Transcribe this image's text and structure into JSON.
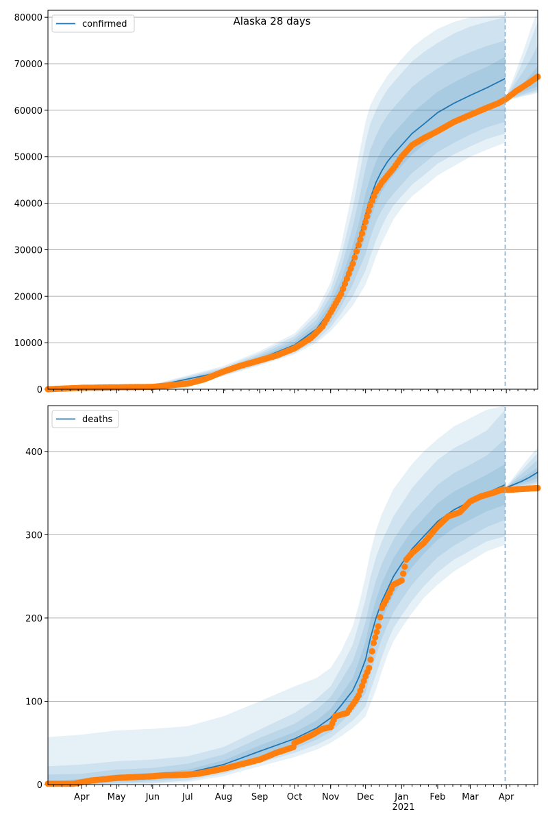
{
  "chart_data": [
    {
      "type": "line",
      "title": "Alaska 28 days",
      "legend": "confirmed",
      "legend_position": "top-left",
      "grid": "y",
      "ylim": [
        0,
        81500
      ],
      "yticks": [
        0,
        10000,
        20000,
        30000,
        40000,
        50000,
        60000,
        70000,
        80000
      ],
      "xlim": [
        "2020-03-03",
        "2021-04-28"
      ],
      "forecast_start": "2021-03-31",
      "fan_levels": [
        "50%",
        "80%",
        "95%",
        "99%"
      ],
      "model_x": [
        "2020-03-03",
        "2020-06-01",
        "2020-08-01",
        "2020-09-01",
        "2020-10-01",
        "2020-10-20",
        "2020-11-01",
        "2020-11-10",
        "2020-11-20",
        "2020-11-25",
        "2020-12-01",
        "2020-12-05",
        "2020-12-10",
        "2020-12-15",
        "2020-12-20",
        "2020-12-25",
        "2021-01-01",
        "2021-01-10",
        "2021-01-20",
        "2021-02-01",
        "2021-02-15",
        "2021-03-01",
        "2021-03-15",
        "2021-03-31"
      ],
      "model_y": [
        0,
        600,
        3800,
        6500,
        9500,
        13000,
        17000,
        21500,
        28000,
        32000,
        37500,
        41000,
        44500,
        47000,
        49000,
        50500,
        52500,
        55000,
        57000,
        59500,
        61500,
        63200,
        64800,
        66800
      ],
      "forecast_x": [
        "2021-03-31",
        "2021-04-05",
        "2021-04-10",
        "2021-04-15",
        "2021-04-20",
        "2021-04-25",
        "2021-04-28"
      ],
      "forecast_y": [
        62500,
        63500,
        64300,
        65200,
        66000,
        66800,
        67300
      ],
      "observed_x": [
        "2020-03-03",
        "2020-04-01",
        "2020-05-01",
        "2020-06-01",
        "2020-07-01",
        "2020-07-15",
        "2020-08-01",
        "2020-08-15",
        "2020-09-01",
        "2020-09-15",
        "2020-10-01",
        "2020-10-15",
        "2020-10-25",
        "2020-11-01",
        "2020-11-10",
        "2020-11-20",
        "2020-11-25",
        "2020-12-01",
        "2020-12-05",
        "2020-12-10",
        "2020-12-15",
        "2020-12-20",
        "2020-12-25",
        "2021-01-01",
        "2021-01-10",
        "2021-01-20",
        "2021-02-01",
        "2021-02-15",
        "2021-03-01",
        "2021-03-15",
        "2021-03-25",
        "2021-03-31",
        "2021-04-10",
        "2021-04-20",
        "2021-04-28"
      ],
      "observed_y": [
        0,
        300,
        400,
        500,
        1200,
        2100,
        3800,
        5000,
        6200,
        7200,
        8800,
        11000,
        13500,
        16500,
        20500,
        27000,
        31000,
        36000,
        39500,
        42500,
        44500,
        46000,
        47500,
        50000,
        52500,
        54000,
        55500,
        57500,
        59000,
        60500,
        61500,
        62300,
        64200,
        65800,
        67200
      ],
      "band_x": [
        "2020-06-01",
        "2020-08-01",
        "2020-09-01",
        "2020-10-01",
        "2020-10-20",
        "2020-11-01",
        "2020-11-10",
        "2020-11-20",
        "2020-11-25",
        "2020-12-01",
        "2020-12-05",
        "2020-12-10",
        "2020-12-15",
        "2020-12-20",
        "2020-12-25",
        "2021-01-01",
        "2021-01-10",
        "2021-01-20",
        "2021-02-01",
        "2021-02-15",
        "2021-03-01",
        "2021-03-15",
        "2021-03-31"
      ],
      "bands": [
        {
          "lower": [
            500,
            3500,
            6000,
            8800,
            12000,
            15500,
            19500,
            25000,
            28500,
            33000,
            36500,
            40000,
            42500,
            44500,
            46000,
            48000,
            50500,
            52500,
            55000,
            57000,
            58800,
            60300,
            62000
          ],
          "upper": [
            700,
            4100,
            7000,
            10200,
            14000,
            18500,
            23500,
            31000,
            35500,
            42000,
            45500,
            49000,
            51500,
            53500,
            55000,
            57000,
            59500,
            61500,
            64000,
            66000,
            67800,
            69300,
            71500
          ]
        },
        {
          "lower": [
            400,
            3200,
            5600,
            8200,
            11200,
            14300,
            17800,
            22500,
            25500,
            29000,
            32500,
            36000,
            38500,
            40500,
            42000,
            44000,
            46500,
            48500,
            51000,
            53000,
            54800,
            56300,
            57500
          ],
          "upper": [
            800,
            4400,
            7400,
            10800,
            15000,
            20000,
            26000,
            35000,
            40500,
            47500,
            51500,
            54500,
            57000,
            59000,
            60500,
            62500,
            65000,
            67000,
            69000,
            71000,
            72500,
            73800,
            75000
          ]
        },
        {
          "lower": [
            300,
            3000,
            5300,
            7800,
            10500,
            13300,
            16300,
            20000,
            22500,
            25500,
            28500,
            32000,
            35000,
            37500,
            39500,
            41500,
            44000,
            46000,
            48500,
            50500,
            52200,
            53800,
            55000
          ],
          "upper": [
            900,
            4700,
            7800,
            11400,
            16000,
            21500,
            28500,
            39000,
            45500,
            53000,
            57000,
            60000,
            62500,
            64500,
            66000,
            68000,
            70500,
            72500,
            74500,
            76500,
            78000,
            79000,
            80000
          ]
        },
        {
          "lower": [
            250,
            2800,
            5100,
            7500,
            10000,
            12500,
            15000,
            18000,
            20000,
            22500,
            25000,
            28500,
            31500,
            34000,
            36500,
            39000,
            41500,
            43500,
            46000,
            48000,
            50000,
            51500,
            53000
          ],
          "upper": [
            1000,
            5000,
            8200,
            12000,
            17000,
            23000,
            31000,
            43000,
            50000,
            57500,
            61000,
            63500,
            65500,
            67500,
            69000,
            71000,
            73500,
            75500,
            77500,
            79000,
            80000,
            80200,
            80500
          ]
        }
      ],
      "forecast_band_x": [
        "2021-03-31",
        "2021-04-08",
        "2021-04-16",
        "2021-04-22",
        "2021-04-28"
      ],
      "forecast_bands": [
        {
          "lower": [
            62500,
            63200,
            64000,
            64600,
            65100
          ],
          "upper": [
            62500,
            64200,
            66000,
            67600,
            69500
          ]
        },
        {
          "lower": [
            62500,
            62800,
            63500,
            64000,
            64400
          ],
          "upper": [
            62500,
            65500,
            68500,
            71000,
            74000
          ]
        },
        {
          "lower": [
            62500,
            62600,
            63200,
            63600,
            64000
          ],
          "upper": [
            62500,
            66500,
            71000,
            75000,
            79000
          ]
        },
        {
          "lower": [
            62500,
            62500,
            63000,
            63300,
            63700
          ],
          "upper": [
            62500,
            67500,
            73000,
            77500,
            81500
          ]
        }
      ]
    },
    {
      "type": "line",
      "legend": "deaths",
      "legend_position": "top-left",
      "grid": "y",
      "ylim": [
        0,
        455
      ],
      "yticks": [
        0,
        100,
        200,
        300,
        400
      ],
      "xlim": [
        "2020-03-03",
        "2021-04-28"
      ],
      "forecast_start": "2021-03-31",
      "fan_levels": [
        "50%",
        "80%",
        "95%",
        "99%"
      ],
      "model_x": [
        "2020-03-03",
        "2020-04-01",
        "2020-05-01",
        "2020-06-01",
        "2020-07-01",
        "2020-08-01",
        "2020-09-01",
        "2020-10-01",
        "2020-10-20",
        "2020-11-01",
        "2020-11-10",
        "2020-11-20",
        "2020-11-25",
        "2020-12-01",
        "2020-12-05",
        "2020-12-10",
        "2020-12-15",
        "2020-12-20",
        "2020-12-25",
        "2021-01-01",
        "2021-01-10",
        "2021-01-20",
        "2021-02-01",
        "2021-02-15",
        "2021-03-01",
        "2021-03-15",
        "2021-03-31"
      ],
      "model_y": [
        0,
        4,
        8,
        10,
        14,
        24,
        40,
        55,
        68,
        80,
        95,
        113,
        128,
        150,
        175,
        200,
        220,
        235,
        250,
        265,
        283,
        298,
        316,
        330,
        340,
        350,
        360
      ],
      "forecast_x": [
        "2021-03-31",
        "2021-04-07",
        "2021-04-14",
        "2021-04-21",
        "2021-04-28"
      ],
      "forecast_y": [
        356,
        360,
        364,
        369,
        375
      ],
      "observed_x": [
        "2020-03-03",
        "2020-03-25",
        "2020-04-10",
        "2020-05-01",
        "2020-06-01",
        "2020-06-10",
        "2020-07-01",
        "2020-07-10",
        "2020-08-01",
        "2020-08-15",
        "2020-09-01",
        "2020-09-15",
        "2020-09-30",
        "2020-10-01",
        "2020-10-15",
        "2020-10-25",
        "2020-11-01",
        "2020-11-05",
        "2020-11-15",
        "2020-11-22",
        "2020-11-25",
        "2020-12-01",
        "2020-12-04",
        "2020-12-08",
        "2020-12-12",
        "2020-12-15",
        "2020-12-20",
        "2020-12-25",
        "2021-01-01",
        "2021-01-05",
        "2021-01-10",
        "2021-01-20",
        "2021-02-01",
        "2021-02-10",
        "2021-02-20",
        "2021-03-01",
        "2021-03-10",
        "2021-03-20",
        "2021-03-28",
        "2021-04-05",
        "2021-04-15",
        "2021-04-28"
      ],
      "observed_y": [
        1,
        1,
        5,
        8,
        10,
        11,
        12,
        13,
        19,
        24,
        30,
        38,
        45,
        50,
        59,
        67,
        69,
        82,
        86,
        100,
        107,
        130,
        140,
        170,
        190,
        212,
        225,
        240,
        245,
        270,
        278,
        290,
        310,
        322,
        327,
        340,
        346,
        350,
        354,
        354,
        355,
        356
      ],
      "band_x": [
        "2020-03-03",
        "2020-04-01",
        "2020-05-01",
        "2020-06-01",
        "2020-07-01",
        "2020-08-01",
        "2020-09-01",
        "2020-10-01",
        "2020-10-20",
        "2020-11-01",
        "2020-11-10",
        "2020-11-20",
        "2020-11-25",
        "2020-12-01",
        "2020-12-05",
        "2020-12-10",
        "2020-12-15",
        "2020-12-20",
        "2020-12-25",
        "2021-01-01",
        "2021-01-10",
        "2021-01-20",
        "2021-02-01",
        "2021-02-15",
        "2021-03-01",
        "2021-03-15",
        "2021-03-31"
      ],
      "bands": [
        {
          "lower": [
            0,
            1,
            4,
            6,
            10,
            20,
            34,
            48,
            60,
            70,
            84,
            100,
            112,
            130,
            155,
            178,
            198,
            213,
            228,
            243,
            261,
            277,
            294,
            308,
            318,
            328,
            336
          ],
          "upper": [
            3,
            7,
            12,
            14,
            18,
            29,
            47,
            63,
            77,
            91,
            108,
            128,
            147,
            172,
            197,
            222,
            242,
            257,
            272,
            287,
            305,
            320,
            338,
            352,
            362,
            372,
            385
          ]
        },
        {
          "lower": [
            0,
            0,
            2,
            4,
            8,
            17,
            30,
            43,
            54,
            63,
            75,
            88,
            97,
            110,
            132,
            155,
            175,
            192,
            207,
            222,
            240,
            256,
            273,
            287,
            298,
            309,
            318
          ],
          "upper": [
            12,
            13,
            18,
            20,
            25,
            36,
            56,
            73,
            90,
            105,
            125,
            148,
            168,
            195,
            220,
            245,
            265,
            280,
            294,
            309,
            327,
            342,
            360,
            374,
            384,
            395,
            415
          ]
        },
        {
          "lower": [
            0,
            0,
            1,
            2,
            5,
            13,
            26,
            38,
            48,
            56,
            66,
            77,
            84,
            94,
            112,
            132,
            153,
            172,
            188,
            203,
            221,
            238,
            255,
            270,
            281,
            292,
            298
          ],
          "upper": [
            22,
            24,
            28,
            30,
            34,
            45,
            66,
            86,
            103,
            118,
            140,
            168,
            192,
            222,
            248,
            273,
            292,
            307,
            322,
            337,
            356,
            372,
            390,
            404,
            414,
            425,
            450
          ]
        },
        {
          "lower": [
            0,
            0,
            0,
            1,
            3,
            10,
            22,
            33,
            42,
            50,
            58,
            68,
            74,
            82,
            96,
            114,
            136,
            156,
            172,
            188,
            206,
            224,
            240,
            256,
            268,
            280,
            288
          ],
          "upper": [
            57,
            60,
            65,
            67,
            70,
            82,
            100,
            118,
            128,
            140,
            160,
            190,
            215,
            250,
            278,
            305,
            325,
            340,
            355,
            368,
            385,
            400,
            415,
            430,
            440,
            450,
            455
          ]
        }
      ],
      "forecast_band_x": [
        "2021-03-31",
        "2021-04-10",
        "2021-04-20",
        "2021-04-28"
      ],
      "forecast_bands": [
        {
          "lower": [
            356,
            360,
            364,
            368
          ],
          "upper": [
            356,
            365,
            373,
            381
          ]
        },
        {
          "lower": [
            356,
            358,
            361,
            364
          ],
          "upper": [
            356,
            368,
            380,
            390
          ]
        },
        {
          "lower": [
            356,
            357,
            359,
            361
          ],
          "upper": [
            356,
            371,
            386,
            398
          ]
        },
        {
          "lower": [
            356,
            356,
            357,
            358
          ],
          "upper": [
            356,
            374,
            392,
            405
          ]
        }
      ]
    }
  ],
  "x_axis": {
    "ticks": [
      {
        "label": "Apr",
        "date": "2020-04-01"
      },
      {
        "label": "May",
        "date": "2020-05-01"
      },
      {
        "label": "Jun",
        "date": "2020-06-01"
      },
      {
        "label": "Jul",
        "date": "2020-07-01"
      },
      {
        "label": "Aug",
        "date": "2020-08-01"
      },
      {
        "label": "Sep",
        "date": "2020-09-01"
      },
      {
        "label": "Oct",
        "date": "2020-10-01"
      },
      {
        "label": "Nov",
        "date": "2020-11-01"
      },
      {
        "label": "Dec",
        "date": "2020-12-01"
      },
      {
        "label": "Jan",
        "date": "2021-01-01"
      },
      {
        "label": "Feb",
        "date": "2021-02-01"
      },
      {
        "label": "Mar",
        "date": "2021-03-01"
      },
      {
        "label": "Apr",
        "date": "2021-04-01"
      }
    ],
    "year_label": "2021"
  },
  "colors": {
    "model_line": "#1f77b4",
    "observed": "#ff7f0e",
    "band": "#1f77b4",
    "grid": "#b0b0b0",
    "forecast_line": "#7fb0d6"
  }
}
